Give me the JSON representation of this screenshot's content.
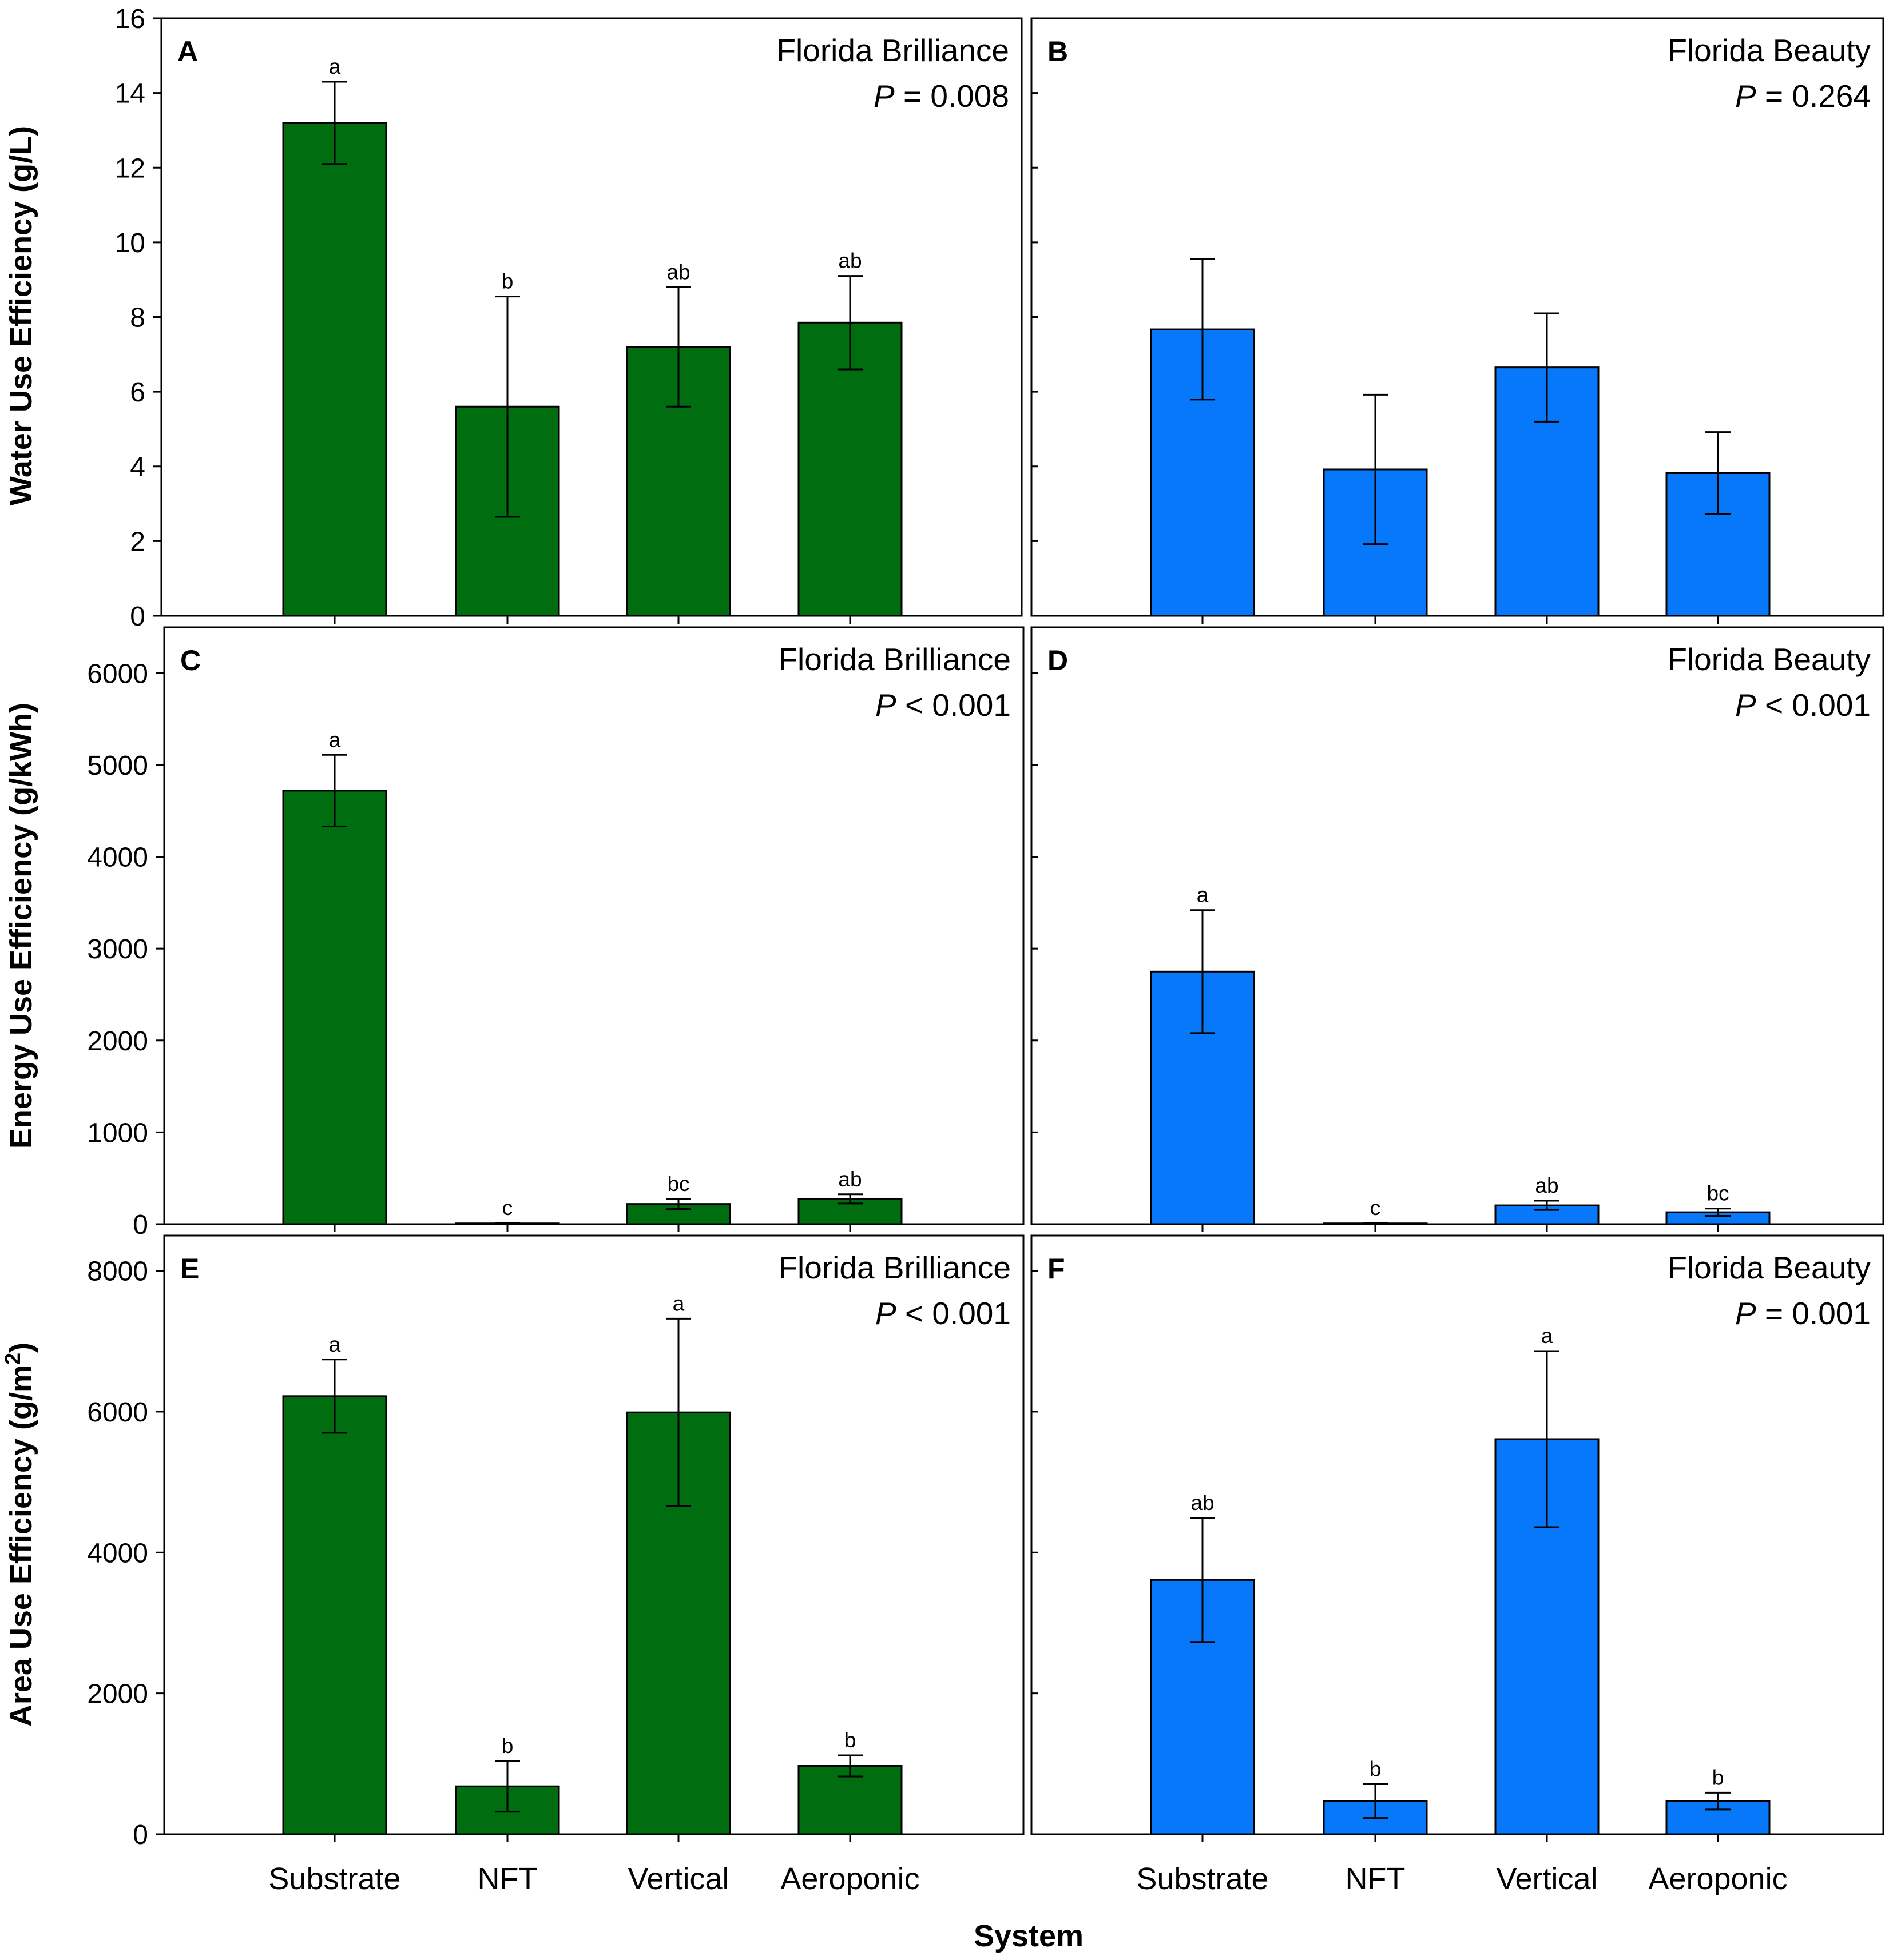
{
  "figure": {
    "xlabel": "System",
    "categories": [
      "Substrate",
      "NFT",
      "Vertical",
      "Aeroponic"
    ],
    "colors": {
      "brilliance": "#006d10",
      "beauty": "#0878fb",
      "axis": "#000000"
    }
  },
  "chart_data": [
    {
      "type": "bar",
      "panel": "A",
      "cultivar": "Florida Brilliance",
      "p_italic": "P",
      "p_rest": " = 0.008",
      "ylabel": "Water Use Efficiency (g/L)",
      "ylim": [
        0,
        16
      ],
      "yticks": [
        0,
        2,
        4,
        6,
        8,
        10,
        12,
        14,
        16
      ],
      "categories": [
        "Substrate",
        "NFT",
        "Vertical",
        "Aeroponic"
      ],
      "values": [
        13.2,
        5.6,
        7.2,
        7.85
      ],
      "errors": [
        1.1,
        2.95,
        1.6,
        1.25
      ],
      "letters": [
        "a",
        "b",
        "ab",
        "ab"
      ],
      "color": "#006d10"
    },
    {
      "type": "bar",
      "panel": "B",
      "cultivar": "Florida Beauty",
      "p_italic": "P",
      "p_rest": " = 0.264",
      "ylabel": "",
      "ylim": [
        0,
        16
      ],
      "yticks": [
        0,
        2,
        4,
        6,
        8,
        10,
        12,
        14,
        16
      ],
      "categories": [
        "Substrate",
        "NFT",
        "Vertical",
        "Aeroponic"
      ],
      "values": [
        7.67,
        3.92,
        6.65,
        3.82
      ],
      "errors": [
        1.88,
        2.0,
        1.45,
        1.1
      ],
      "letters": [
        "",
        "",
        "",
        ""
      ],
      "color": "#0878fb"
    },
    {
      "type": "bar",
      "panel": "C",
      "cultivar": "Florida Brilliance",
      "p_italic": "P",
      "p_rest": " < 0.001",
      "ylabel": "Energy Use Efficiency (g/kWh)",
      "ylim": [
        0,
        6500
      ],
      "yticks": [
        0,
        1000,
        2000,
        3000,
        4000,
        5000,
        6000
      ],
      "categories": [
        "Substrate",
        "NFT",
        "Vertical",
        "Aeroponic"
      ],
      "values": [
        4720,
        8,
        220,
        275
      ],
      "errors": [
        390,
        6,
        55,
        50
      ],
      "letters": [
        "a",
        "c",
        "bc",
        "ab"
      ],
      "color": "#006d10"
    },
    {
      "type": "bar",
      "panel": "D",
      "cultivar": "Florida Beauty",
      "p_italic": "P",
      "p_rest": " < 0.001",
      "ylabel": "",
      "ylim": [
        0,
        6500
      ],
      "yticks": [
        0,
        1000,
        2000,
        3000,
        4000,
        5000,
        6000
      ],
      "categories": [
        "Substrate",
        "NFT",
        "Vertical",
        "Aeroponic"
      ],
      "values": [
        2750,
        8,
        205,
        130
      ],
      "errors": [
        670,
        6,
        50,
        40
      ],
      "letters": [
        "a",
        "c",
        "ab",
        "bc"
      ],
      "color": "#0878fb"
    },
    {
      "type": "bar",
      "panel": "E",
      "cultivar": "Florida Brilliance",
      "p_italic": "P",
      "p_rest": " < 0.001",
      "ylabel": "Area Use Efficiency (g/m",
      "ylabel_sup": "2",
      "ylabel_end": ")",
      "ylim": [
        0,
        8500
      ],
      "yticks": [
        0,
        2000,
        4000,
        6000,
        8000
      ],
      "categories": [
        "Substrate",
        "NFT",
        "Vertical",
        "Aeroponic"
      ],
      "values": [
        6220,
        680,
        5990,
        970
      ],
      "errors": [
        520,
        360,
        1330,
        150
      ],
      "letters": [
        "a",
        "b",
        "a",
        "b"
      ],
      "color": "#006d10"
    },
    {
      "type": "bar",
      "panel": "F",
      "cultivar": "Florida Beauty",
      "p_italic": "P",
      "p_rest": " = 0.001",
      "ylabel": "",
      "ylim": [
        0,
        8500
      ],
      "yticks": [
        0,
        2000,
        4000,
        6000,
        8000
      ],
      "categories": [
        "Substrate",
        "NFT",
        "Vertical",
        "Aeroponic"
      ],
      "values": [
        3610,
        470,
        5610,
        470
      ],
      "errors": [
        880,
        240,
        1250,
        120
      ],
      "letters": [
        "ab",
        "b",
        "a",
        "b"
      ],
      "color": "#0878fb"
    }
  ]
}
